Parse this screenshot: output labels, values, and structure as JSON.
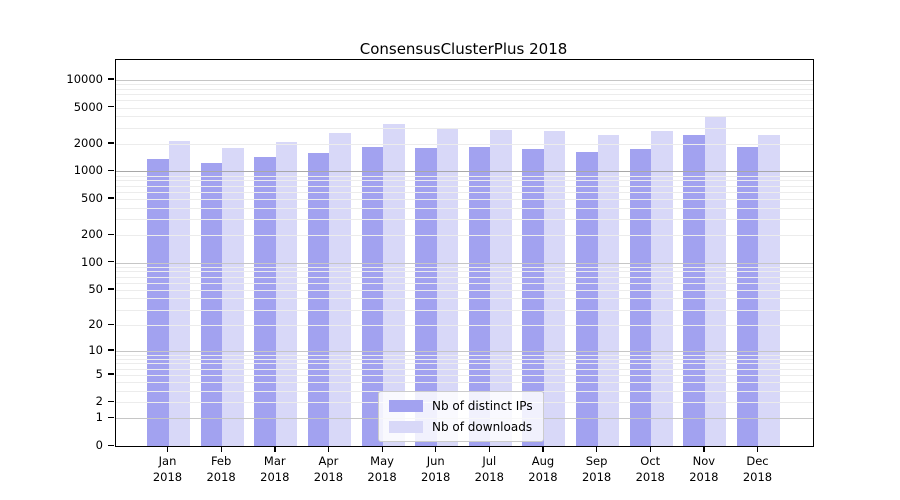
{
  "title": "ConsensusClusterPlus 2018",
  "chart_data": {
    "type": "bar",
    "title": "ConsensusClusterPlus 2018",
    "categories": [
      "Jan 2018",
      "Feb 2018",
      "Mar 2018",
      "Apr 2018",
      "May 2018",
      "Jun 2018",
      "Jul 2018",
      "Aug 2018",
      "Sep 2018",
      "Oct 2018",
      "Nov 2018",
      "Dec 2018"
    ],
    "x_tick_month": [
      "Jan",
      "Feb",
      "Mar",
      "Apr",
      "May",
      "Jun",
      "Jul",
      "Aug",
      "Sep",
      "Oct",
      "Nov",
      "Dec"
    ],
    "x_tick_year": "2018",
    "series": [
      {
        "name": "Nb of distinct IPs",
        "color": "#a2a2f0",
        "values": [
          1370,
          1240,
          1450,
          1600,
          1850,
          1800,
          1830,
          1760,
          1650,
          1750,
          2500,
          1850
        ]
      },
      {
        "name": "Nb of downloads",
        "color": "#d8d8f8",
        "values": [
          2150,
          1800,
          2100,
          2650,
          3300,
          2950,
          2850,
          2800,
          2500,
          2800,
          4000,
          2500
        ]
      }
    ],
    "yscale": "log1p",
    "yticks": [
      0,
      1,
      2,
      5,
      10,
      20,
      50,
      100,
      200,
      500,
      1000,
      2000,
      5000,
      10000
    ],
    "ylim": [
      0,
      16500
    ],
    "xlabel": "",
    "ylabel": "",
    "grid": "on",
    "legend_position": "lower center"
  },
  "legend": {
    "items": [
      {
        "label": "Nb of distinct IPs",
        "color": "#a2a2f0"
      },
      {
        "label": "Nb of downloads",
        "color": "#d8d8f8"
      }
    ]
  },
  "colors": {
    "bar_distinct_ips": "#a2a2f0",
    "bar_downloads": "#d8d8f8",
    "grid_minor": "#ececec",
    "grid_major": "#c6c6c6",
    "grid_1000": "#a8a8a8",
    "axis": "#000000",
    "background": "#ffffff"
  }
}
